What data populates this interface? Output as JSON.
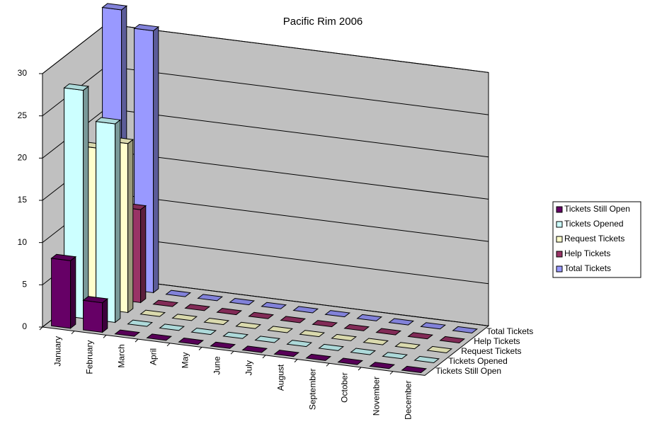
{
  "chart_data": {
    "type": "bar3d",
    "title": "Pacific Rim 2006",
    "categories": [
      "January",
      "February",
      "March",
      "April",
      "May",
      "June",
      "July",
      "August",
      "September",
      "October",
      "November",
      "December"
    ],
    "series": [
      {
        "name": "Tickets Still Open",
        "color": "#660066",
        "values": [
          8,
          3.5,
          0,
          0,
          0,
          0,
          0,
          0,
          0,
          0,
          0,
          0
        ]
      },
      {
        "name": "Tickets Opened",
        "color": "#ccffff",
        "values": [
          27,
          23.5,
          0,
          0,
          0,
          0,
          0,
          0,
          0,
          0,
          0,
          0
        ]
      },
      {
        "name": "Request Tickets",
        "color": "#ffffcc",
        "values": [
          19,
          20,
          0,
          0,
          0,
          0,
          0,
          0,
          0,
          0,
          0,
          0
        ]
      },
      {
        "name": "Help Tickets",
        "color": "#993366",
        "values": [
          14,
          11,
          0,
          0,
          0,
          0,
          0,
          0,
          0,
          0,
          0,
          0
        ]
      },
      {
        "name": "Total Tickets",
        "color": "#9999ff",
        "values": [
          33,
          31,
          0,
          0,
          0,
          0,
          0,
          0,
          0,
          0,
          0,
          0
        ]
      }
    ],
    "ylim": [
      0,
      30
    ],
    "yticks": [
      0,
      5,
      10,
      15,
      20,
      25,
      30
    ],
    "grid": true,
    "legend": "right"
  }
}
